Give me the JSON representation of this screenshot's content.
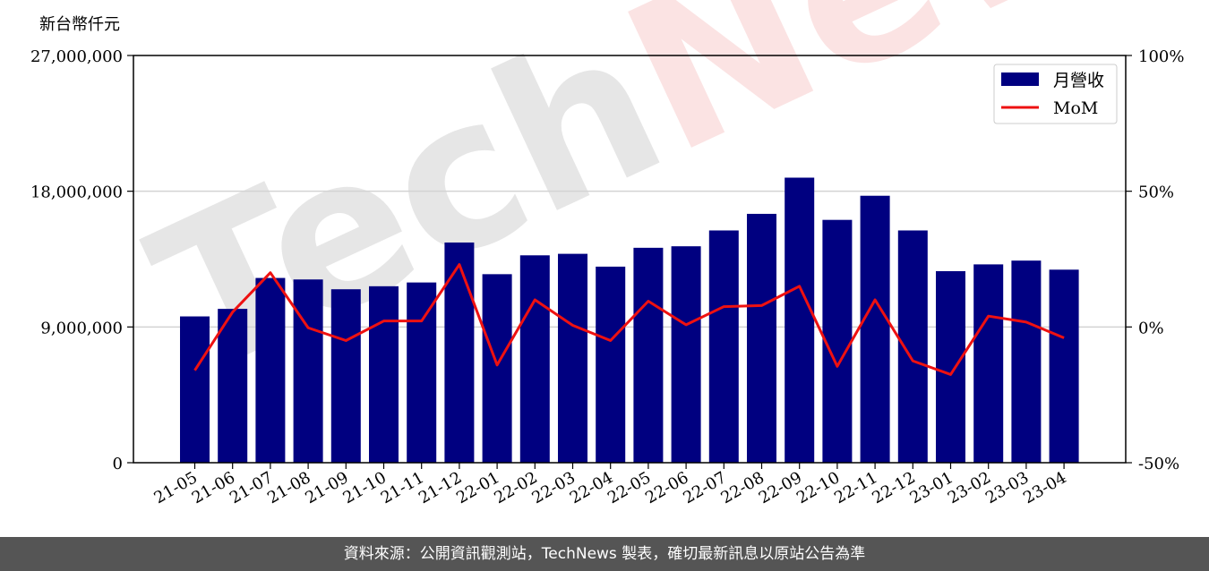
{
  "footer": {
    "source_text": "資料來源：公開資訊觀測站，TechNews 製表，確切最新訊息以原站公告為準"
  },
  "watermark": {
    "text": "TechNews",
    "tech_color": "#e6e6e6",
    "news_color": "#fbe3e3"
  },
  "colors": {
    "bar": "#000080",
    "line": "#ee1111",
    "grid": "#d3d3d3"
  },
  "chart_data": {
    "type": "bar",
    "y_unit_label": "新台幣仟元",
    "categories": [
      "21-05",
      "21-06",
      "21-07",
      "21-08",
      "21-09",
      "21-10",
      "21-11",
      "21-12",
      "22-01",
      "22-02",
      "22-03",
      "22-04",
      "22-05",
      "22-06",
      "22-07",
      "22-08",
      "22-09",
      "22-10",
      "22-11",
      "22-12",
      "23-01",
      "23-02",
      "23-03",
      "23-04"
    ],
    "series": [
      {
        "name": "月營收",
        "type": "bar",
        "axis": "left",
        "values": [
          9700000,
          10200000,
          12250000,
          12150000,
          11500000,
          11700000,
          11950000,
          14600000,
          12500000,
          13750000,
          13850000,
          13000000,
          14250000,
          14350000,
          15400000,
          16500000,
          18900000,
          16100000,
          17700000,
          15400000,
          12700000,
          13150000,
          13400000,
          12800000
        ]
      },
      {
        "name": "MoM",
        "type": "line",
        "axis": "right",
        "values": [
          -16,
          5.5,
          20,
          -0.3,
          -5,
          2.2,
          2.2,
          23,
          -14,
          10,
          0.6,
          -5,
          9.5,
          0.8,
          7.5,
          7.9,
          15,
          -14.5,
          10,
          -12.5,
          -17.5,
          4,
          1.8,
          -4
        ]
      }
    ],
    "y_left": {
      "range": [
        0,
        27000000
      ],
      "ticks": [
        0,
        9000000,
        18000000,
        27000000
      ],
      "tick_labels": [
        "0",
        "9,000,000",
        "18,000,000",
        "27,000,000"
      ]
    },
    "y_right": {
      "range": [
        -50,
        100
      ],
      "ticks": [
        -50,
        0,
        50,
        100
      ],
      "tick_labels": [
        "-50%",
        "0%",
        "50%",
        "100%"
      ]
    },
    "grid": "horizontal",
    "legend": "top-right"
  }
}
